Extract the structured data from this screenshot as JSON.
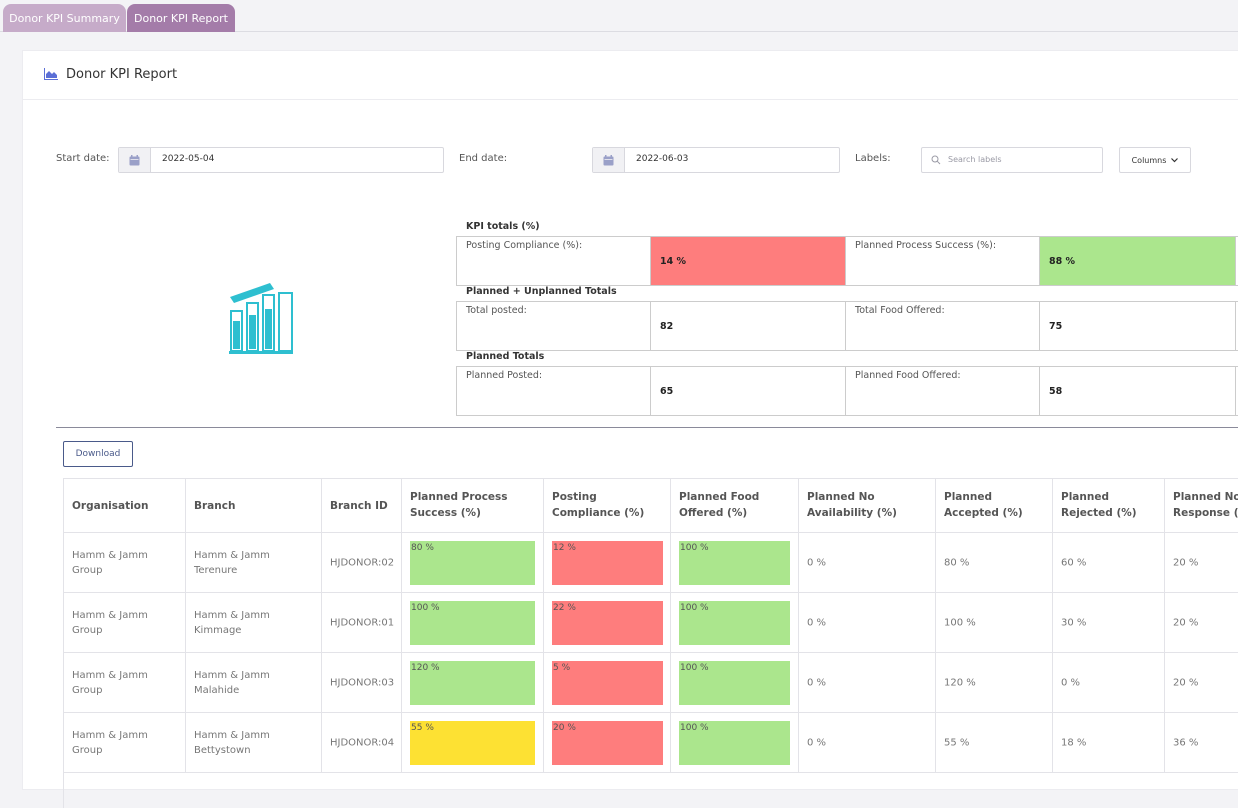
{
  "tabs": [
    {
      "label": "Donor KPI Summary",
      "active": false
    },
    {
      "label": "Donor KPI Report",
      "active": true
    }
  ],
  "card": {
    "title": "Donor KPI Report",
    "icon": "area-chart-icon"
  },
  "filters": {
    "start_label": "Start date:",
    "start_value": "2022-05-04",
    "end_label": "End date:",
    "end_value": "2022-06-03",
    "labels_label": "Labels:",
    "search_placeholder": "Search labels",
    "columns_label": "Columns"
  },
  "colors": {
    "green": "#abe68d",
    "red": "#fe7d7d",
    "yellow": "#fde133",
    "accent": "#a47ca9",
    "illus": "#2ebfd0"
  },
  "kpi": {
    "kpi_totals_title": "KPI totals (%)",
    "posting_compliance_label": "Posting Compliance (%):",
    "posting_compliance_value": "14 %",
    "planned_process_label": "Planned Process Success (%):",
    "planned_process_value": "88 %",
    "totals_title": "Planned + Unplanned Totals",
    "total_posted_label": "Total posted:",
    "total_posted_value": "82",
    "total_food_label": "Total Food Offered:",
    "total_food_value": "75",
    "planned_title": "Planned Totals",
    "planned_posted_label": "Planned Posted:",
    "planned_posted_value": "65",
    "planned_food_label": "Planned Food Offered:",
    "planned_food_value": "58"
  },
  "download_label": "Download",
  "table": {
    "headers": [
      "Organisation",
      "Branch",
      "Branch ID",
      "Planned Process Success (%)",
      "Posting Compliance (%)",
      "Planned Food Offered (%)",
      "Planned No Availability (%)",
      "Planned Accepted (%)",
      "Planned Rejected (%)",
      "Planned No Response (%)"
    ],
    "rows": [
      {
        "org": "Hamm & Jamm Group",
        "branch": "Hamm & Jamm Terenure",
        "id": "HJDONOR:02",
        "pps": "80 %",
        "pps_level": 80,
        "pps_color": "green",
        "pc": "12 %",
        "pc_level": 12,
        "pc_color": "red",
        "pfo": "100 %",
        "pfo_level": 100,
        "pfo_color": "green",
        "pna": "0 %",
        "pa": "80 %",
        "pr": "60 %",
        "pnr": "20 %"
      },
      {
        "org": "Hamm & Jamm Group",
        "branch": "Hamm & Jamm Kimmage",
        "id": "HJDONOR:01",
        "pps": "100 %",
        "pps_level": 100,
        "pps_color": "green",
        "pc": "22 %",
        "pc_level": 22,
        "pc_color": "red",
        "pfo": "100 %",
        "pfo_level": 100,
        "pfo_color": "green",
        "pna": "0 %",
        "pa": "100 %",
        "pr": "30 %",
        "pnr": "20 %"
      },
      {
        "org": "Hamm & Jamm Group",
        "branch": "Hamm & Jamm Malahide",
        "id": "HJDONOR:03",
        "pps": "120 %",
        "pps_level": 120,
        "pps_color": "green",
        "pc": "5 %",
        "pc_level": 5,
        "pc_color": "red",
        "pfo": "100 %",
        "pfo_level": 100,
        "pfo_color": "green",
        "pna": "0 %",
        "pa": "120 %",
        "pr": "0 %",
        "pnr": "20 %"
      },
      {
        "org": "Hamm & Jamm Group",
        "branch": "Hamm & Jamm Bettystown",
        "id": "HJDONOR:04",
        "pps": "55 %",
        "pps_level": 55,
        "pps_color": "yellow",
        "pc": "20 %",
        "pc_level": 20,
        "pc_color": "red",
        "pfo": "100 %",
        "pfo_level": 100,
        "pfo_color": "green",
        "pna": "0 %",
        "pa": "55 %",
        "pr": "18 %",
        "pnr": "36 %"
      }
    ]
  }
}
